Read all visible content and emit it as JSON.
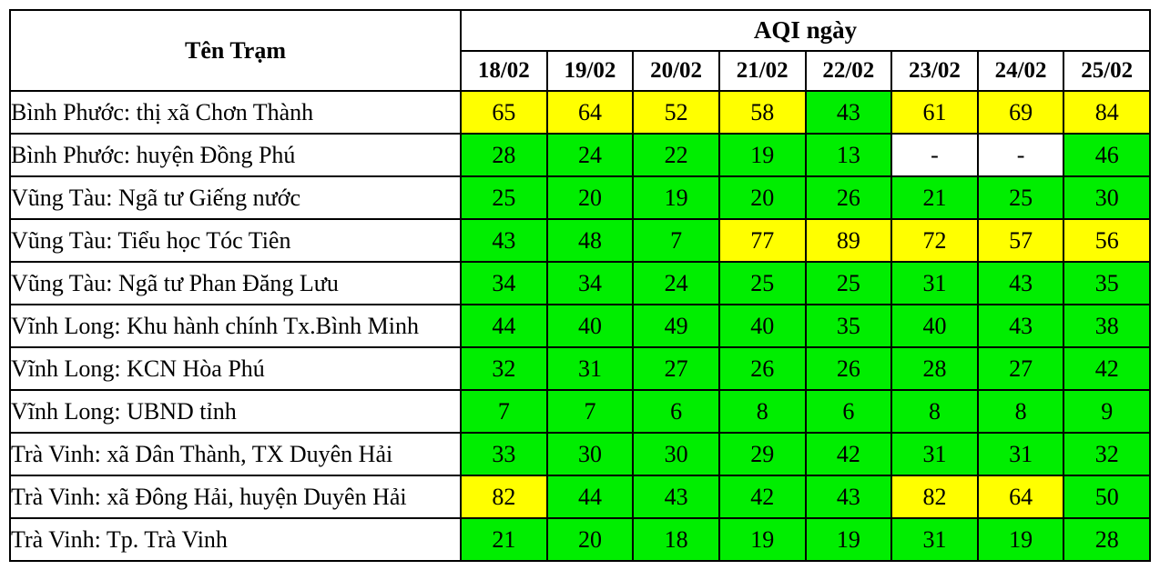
{
  "colors": {
    "green": "#00ee00",
    "yellow": "#ffff00",
    "white": "#ffffff",
    "border": "#000000",
    "text": "#000000"
  },
  "chart_data": {
    "type": "table",
    "row_header_label": "Tên Trạm",
    "column_group_label": "AQI ngày",
    "categories": [
      "18/02",
      "19/02",
      "20/02",
      "21/02",
      "22/02",
      "23/02",
      "24/02",
      "25/02"
    ],
    "missing_value_display": "-",
    "series": [
      {
        "name": "Bình Phước: thị xã Chơn Thành",
        "values": [
          65,
          64,
          52,
          58,
          43,
          61,
          69,
          84
        ],
        "cell_colors": [
          "yellow",
          "yellow",
          "yellow",
          "yellow",
          "green",
          "yellow",
          "yellow",
          "yellow"
        ]
      },
      {
        "name": "Bình Phước: huyện Đồng Phú",
        "values": [
          28,
          24,
          22,
          19,
          13,
          "-",
          "-",
          46
        ],
        "cell_colors": [
          "green",
          "green",
          "green",
          "green",
          "green",
          "white",
          "white",
          "green"
        ]
      },
      {
        "name": "Vũng Tàu: Ngã tư Giếng nước",
        "values": [
          25,
          20,
          19,
          20,
          26,
          21,
          25,
          30
        ],
        "cell_colors": [
          "green",
          "green",
          "green",
          "green",
          "green",
          "green",
          "green",
          "green"
        ]
      },
      {
        "name": "Vũng Tàu: Tiểu học Tóc Tiên",
        "values": [
          43,
          48,
          7,
          77,
          89,
          72,
          57,
          56
        ],
        "cell_colors": [
          "green",
          "green",
          "green",
          "yellow",
          "yellow",
          "yellow",
          "yellow",
          "yellow"
        ]
      },
      {
        "name": "Vũng Tàu: Ngã tư Phan Đăng Lưu",
        "values": [
          34,
          34,
          24,
          25,
          25,
          31,
          43,
          35
        ],
        "cell_colors": [
          "green",
          "green",
          "green",
          "green",
          "green",
          "green",
          "green",
          "green"
        ]
      },
      {
        "name": "Vĩnh Long: Khu hành chính Tx.Bình Minh",
        "values": [
          44,
          40,
          49,
          40,
          35,
          40,
          43,
          38
        ],
        "cell_colors": [
          "green",
          "green",
          "green",
          "green",
          "green",
          "green",
          "green",
          "green"
        ]
      },
      {
        "name": "Vĩnh Long: KCN Hòa Phú",
        "values": [
          32,
          31,
          27,
          26,
          26,
          28,
          27,
          42
        ],
        "cell_colors": [
          "green",
          "green",
          "green",
          "green",
          "green",
          "green",
          "green",
          "green"
        ]
      },
      {
        "name": "Vĩnh Long: UBND tỉnh",
        "values": [
          7,
          7,
          6,
          8,
          6,
          8,
          8,
          9
        ],
        "cell_colors": [
          "green",
          "green",
          "green",
          "green",
          "green",
          "green",
          "green",
          "green"
        ]
      },
      {
        "name": "Trà Vinh: xã Dân Thành, TX Duyên Hải",
        "values": [
          33,
          30,
          30,
          29,
          42,
          31,
          31,
          32
        ],
        "cell_colors": [
          "green",
          "green",
          "green",
          "green",
          "green",
          "green",
          "green",
          "green"
        ]
      },
      {
        "name": "Trà Vinh: xã Đông Hải, huyện Duyên Hải",
        "values": [
          82,
          44,
          43,
          42,
          43,
          82,
          64,
          50
        ],
        "cell_colors": [
          "yellow",
          "green",
          "green",
          "green",
          "green",
          "yellow",
          "yellow",
          "green"
        ]
      },
      {
        "name": "Trà Vinh: Tp. Trà Vinh",
        "values": [
          21,
          20,
          18,
          19,
          19,
          31,
          19,
          28
        ],
        "cell_colors": [
          "green",
          "green",
          "green",
          "green",
          "green",
          "green",
          "green",
          "green"
        ]
      }
    ]
  }
}
